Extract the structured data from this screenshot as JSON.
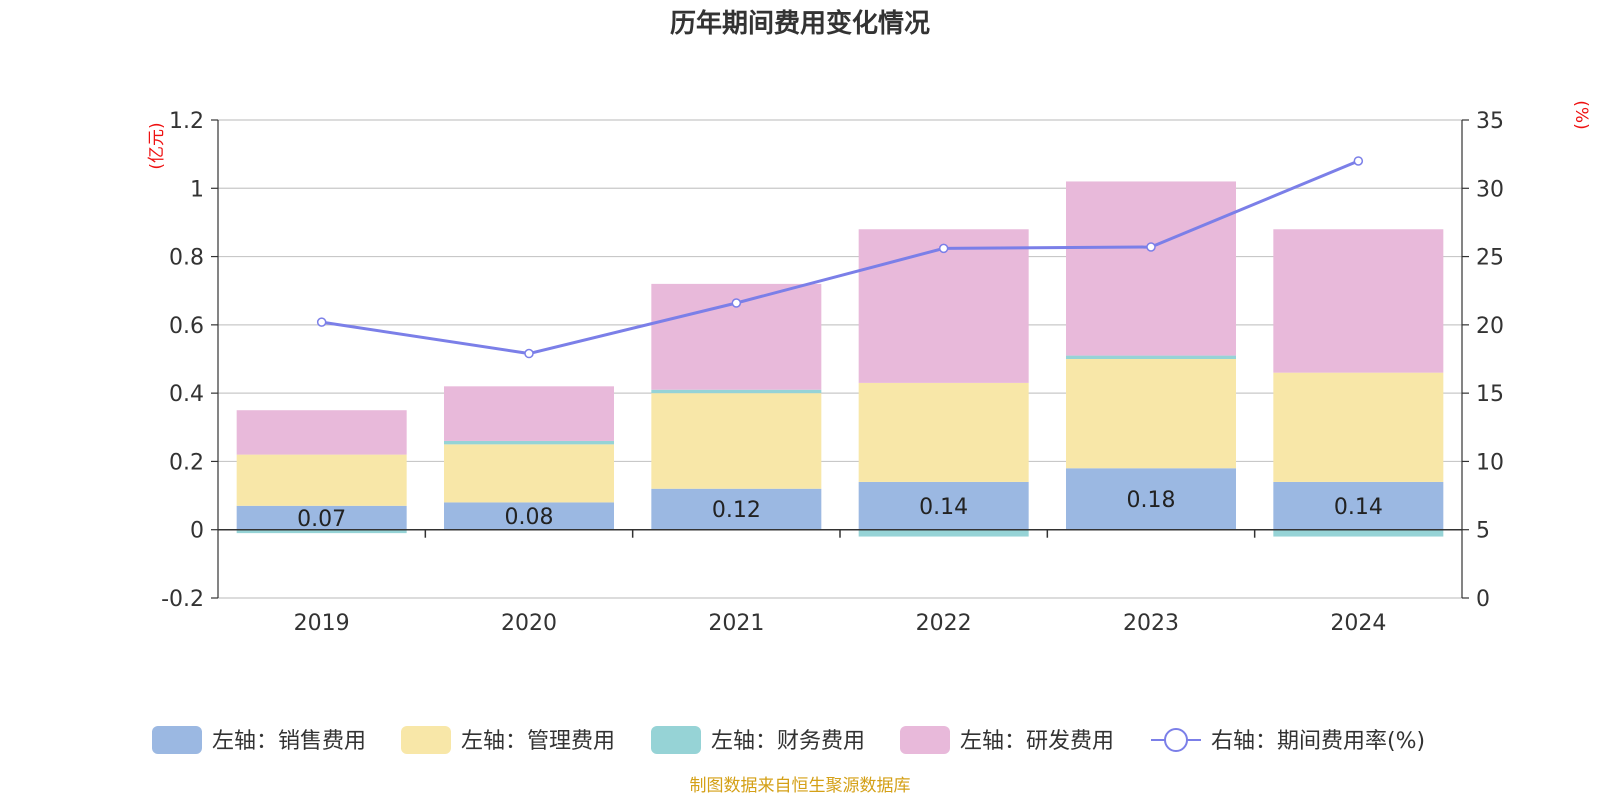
{
  "chart_data": {
    "type": "bar",
    "stacked": true,
    "title": "历年期间费用变化情况",
    "categories": [
      "2019",
      "2020",
      "2021",
      "2022",
      "2023",
      "2024"
    ],
    "left_axis": {
      "unit": "(亿元)",
      "ylim": [
        -0.2,
        1.2
      ],
      "ticks": [
        -0.2,
        0,
        0.2,
        0.4,
        0.6,
        0.8,
        1,
        1.2
      ]
    },
    "right_axis": {
      "unit": "(%)",
      "ylim": [
        0,
        35
      ],
      "ticks": [
        0,
        5,
        10,
        15,
        20,
        25,
        30,
        35
      ]
    },
    "series": [
      {
        "name": "左轴：销售费用",
        "type": "bar",
        "color": "#9bb8e2",
        "values": [
          0.07,
          0.08,
          0.12,
          0.14,
          0.18,
          0.14
        ],
        "labels": [
          "0.07",
          "0.08",
          "0.12",
          "0.14",
          "0.18",
          "0.14"
        ]
      },
      {
        "name": "左轴：管理费用",
        "type": "bar",
        "color": "#f8e7a8",
        "values": [
          0.15,
          0.17,
          0.28,
          0.29,
          0.32,
          0.32
        ]
      },
      {
        "name": "左轴：财务费用",
        "type": "bar",
        "color": "#96d3d6",
        "values": [
          -0.01,
          0.01,
          0.01,
          -0.02,
          0.01,
          -0.02
        ]
      },
      {
        "name": "左轴：研发费用",
        "type": "bar",
        "color": "#e8b9da",
        "values": [
          0.13,
          0.16,
          0.31,
          0.45,
          0.51,
          0.42
        ]
      },
      {
        "name": "右轴：期间费用率(%)",
        "type": "line",
        "color": "#7b7fe8",
        "values": [
          20.2,
          17.9,
          21.6,
          25.6,
          25.7,
          32.0
        ]
      }
    ],
    "legend_position": "bottom",
    "grid": true
  },
  "source": "制图数据来自恒生聚源数据库"
}
